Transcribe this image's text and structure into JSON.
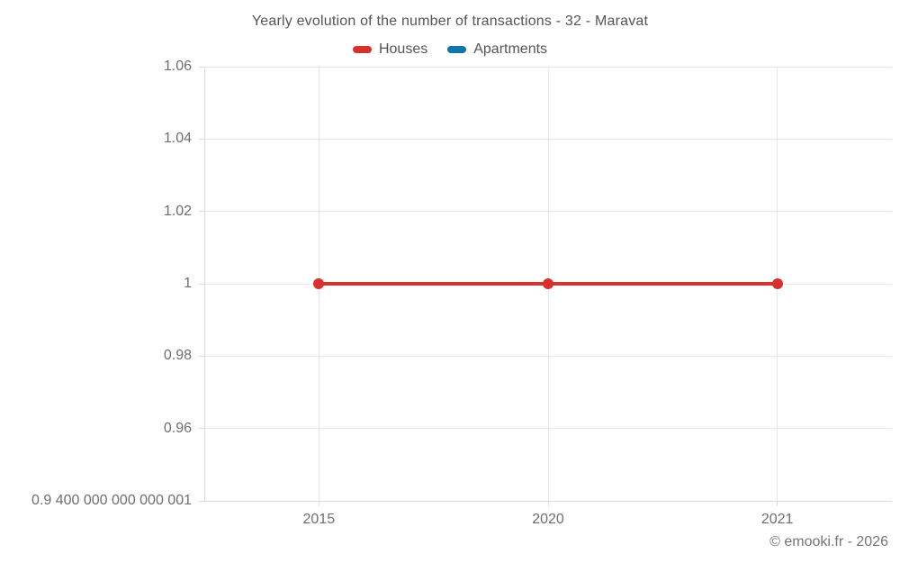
{
  "chart": {
    "title": "Yearly evolution of the number of transactions - 32 - Maravat",
    "copyright": "© emooki.fr - 2026"
  },
  "chart_data": {
    "type": "line",
    "title": "Yearly evolution of the number of transactions - 32 - Maravat",
    "xlabel": "",
    "ylabel": "",
    "categories": [
      "2015",
      "2020",
      "2021"
    ],
    "series": [
      {
        "name": "Houses",
        "color": "#d7312e",
        "values": [
          1,
          1,
          1
        ]
      },
      {
        "name": "Apartments",
        "color": "#0e76a8",
        "values": [
          null,
          null,
          null
        ]
      }
    ],
    "y_ticks": [
      {
        "label": "1.06",
        "value": 1.06
      },
      {
        "label": "1.04",
        "value": 1.04
      },
      {
        "label": "1.02",
        "value": 1.02
      },
      {
        "label": "1",
        "value": 1
      },
      {
        "label": "0.98",
        "value": 0.98
      },
      {
        "label": "0.96",
        "value": 0.96
      },
      {
        "label": "0.9 400 000 000 000 001",
        "value": 0.9400000000000001
      }
    ],
    "ylim": [
      0.9400000000000001,
      1.06
    ],
    "grid": true,
    "legend_position": "top"
  }
}
